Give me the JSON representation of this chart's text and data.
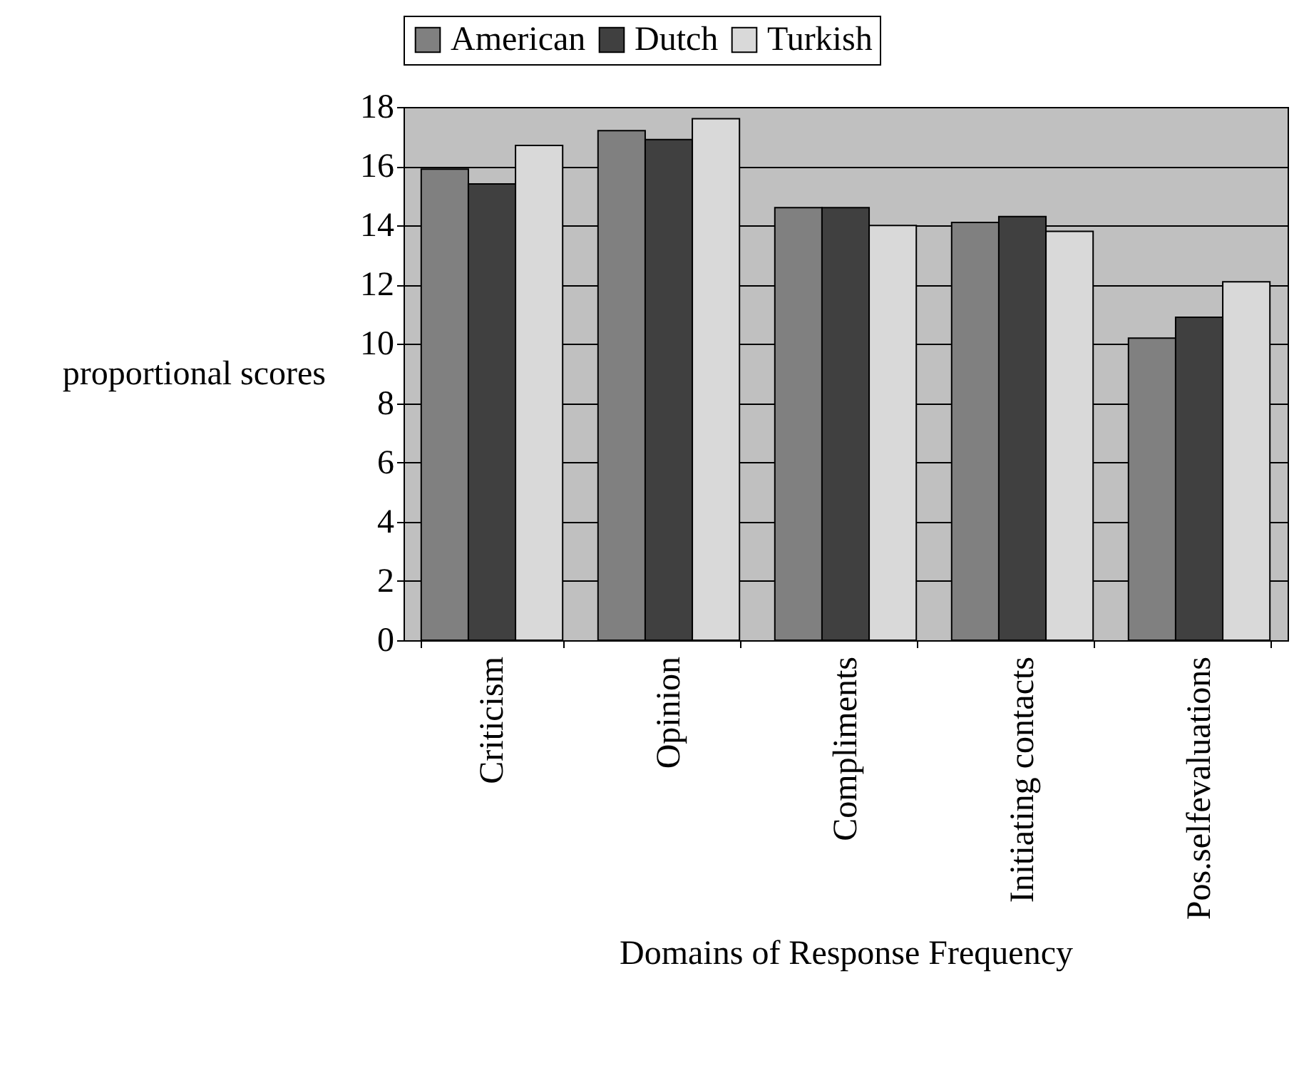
{
  "chart_data": {
    "type": "bar",
    "xlabel": "Domains of Response Frequency",
    "ylabel": "proportional scores",
    "categories": [
      "Criticism",
      "Opinion",
      "Compliments",
      "Initiating contacts",
      "Pos.selfevaluations"
    ],
    "series": [
      {
        "name": "American",
        "color": "#808080",
        "values": [
          15.9,
          17.2,
          14.6,
          14.1,
          10.2
        ]
      },
      {
        "name": "Dutch",
        "color": "#404040",
        "values": [
          15.4,
          16.9,
          14.6,
          14.3,
          10.9
        ]
      },
      {
        "name": "Turkish",
        "color": "#d9d9d9",
        "values": [
          16.7,
          17.6,
          14.0,
          13.8,
          12.1
        ]
      }
    ],
    "ylim": [
      0,
      18
    ],
    "yticks": [
      0,
      2,
      4,
      6,
      8,
      10,
      12,
      14,
      16,
      18
    ],
    "grid": "y",
    "legend": "top"
  }
}
